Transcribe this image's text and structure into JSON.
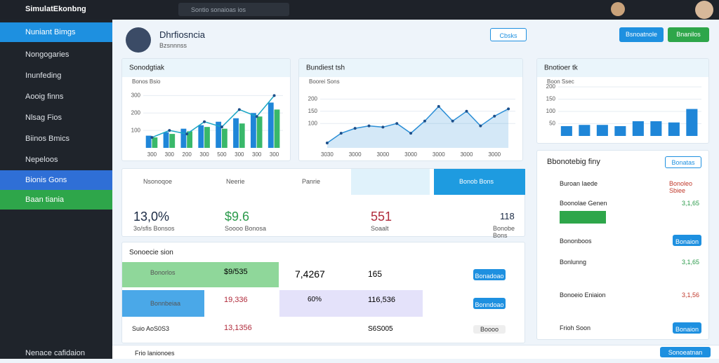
{
  "topbar": {
    "app_name": "SimulatEkonbng",
    "search": "Sontio sonaioas ios"
  },
  "sidebar": {
    "items": [
      "Nuniant Bimgs",
      "Nongogaries",
      "Inunfeding",
      "Aooig finns",
      "Nlsag Fios",
      "Biinos Bmics",
      "Nepeloos",
      "Bionis Gons",
      "Baan tiania"
    ],
    "footer": "Nenace cafidaion"
  },
  "header": {
    "name": "Dhrfiosncia",
    "subtitle": "Bzsnnnss",
    "buttons": [
      "Cbsks",
      "Bsnoatnole",
      "Bnanilos"
    ]
  },
  "charts": [
    {
      "title": "Sonodgtiak",
      "legend": "Bonos Bsio",
      "ylim": [
        0,
        350
      ],
      "yticks": [
        100,
        200,
        300
      ],
      "categories": [
        "300",
        "300",
        "200",
        "300",
        "500",
        "300",
        "300",
        "300"
      ],
      "series": [
        {
          "kind": "bar",
          "color": "#1f86d8",
          "values": [
            70,
            90,
            110,
            130,
            150,
            170,
            200,
            260
          ]
        },
        {
          "kind": "bar",
          "color": "#39b86a",
          "values": [
            60,
            80,
            95,
            120,
            110,
            140,
            180,
            220
          ]
        },
        {
          "kind": "line",
          "color": "#1aa6c4",
          "values": [
            60,
            100,
            80,
            150,
            120,
            220,
            180,
            300
          ]
        }
      ]
    },
    {
      "title": "Bundiest tsh",
      "legend": "Boorei Sons",
      "ylim": [
        0,
        250
      ],
      "yticks": [
        100,
        150,
        200
      ],
      "categories": [
        "3030",
        null,
        "3000",
        null,
        "3000",
        null,
        "3000",
        null,
        "3000",
        null,
        "3000",
        null,
        "3000",
        null
      ],
      "series": [
        {
          "kind": "area",
          "color": "#2a8ed6",
          "values": [
            20,
            60,
            80,
            90,
            85,
            100,
            60,
            110,
            170,
            110,
            150,
            90,
            130,
            160
          ]
        }
      ]
    },
    {
      "title": "Bnotioer tk",
      "legend": "Boon Ssec",
      "ylim": [
        0,
        200
      ],
      "yticks": [
        50,
        100,
        150,
        200
      ],
      "series": [
        {
          "kind": "bar",
          "color": "#1f86d8",
          "values": [
            40,
            45,
            45,
            40,
            60,
            60,
            55,
            110
          ]
        }
      ]
    }
  ],
  "stats": [
    {
      "label": "Nsonoqoe",
      "value": "13,0%",
      "caption": "3o/sfis Bonsos"
    },
    {
      "label": "Neerie",
      "value": "$9.6",
      "caption": "Soooo Bonosa"
    },
    {
      "label": "Panrie",
      "value": "551",
      "caption": "Soaalt"
    },
    {
      "label": "Bonob Bons",
      "value": "118",
      "caption": "Bonobe Bons"
    }
  ],
  "section": {
    "title": "Sonoecie sion",
    "rows": [
      {
        "label": "Bonorlos",
        "value": "$9/535",
        "value2": "7,4267",
        "value3": "165",
        "button": "Bonadoao"
      },
      {
        "label": "Bonnbeiaa",
        "value": "19,336",
        "value2": "60%",
        "value3": "116,536",
        "button": "Bonndoao"
      },
      {
        "label": "Suio AoS0S3",
        "value": "13,1356",
        "value2": "",
        "value3": "S6S005",
        "button": "Boooo"
      }
    ]
  },
  "panel": {
    "title": "Bbonotebig finy",
    "button": "Bonatas",
    "items": [
      {
        "label": "Buroan Iaede",
        "value": "Bonoleo Sbiee"
      },
      {
        "label": "Boonolae Genen",
        "value": "3,1,65"
      },
      {
        "label": "Bononboos",
        "value": "Bonaion"
      },
      {
        "label": "Bonlunng",
        "value": "3,1,65"
      },
      {
        "label": "Bonoeio Eniaion",
        "value": "3,1,56"
      },
      {
        "label": "Frioh Soon",
        "value": "Bonaion"
      }
    ]
  },
  "footer": {
    "label": "Frio lanionoes",
    "right": "Sonoeatnan"
  }
}
